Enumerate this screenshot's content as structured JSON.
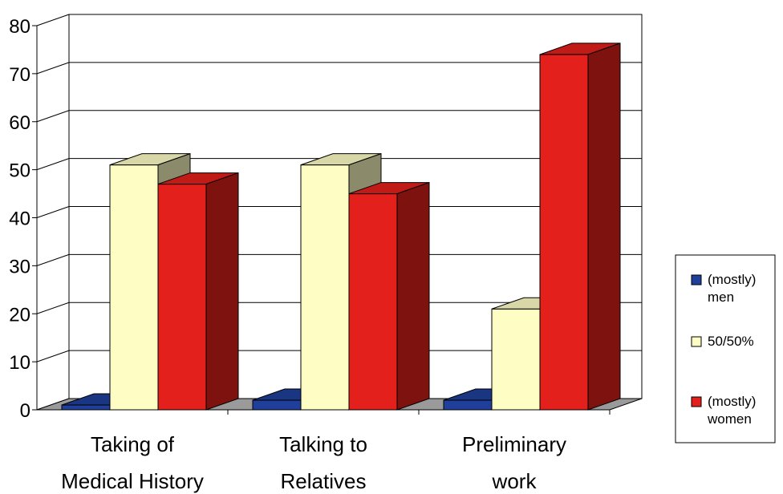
{
  "chart_data": {
    "type": "bar",
    "three_d": true,
    "categories": [
      [
        "Taking of",
        "Medical History"
      ],
      [
        "Talking to",
        "Relatives"
      ],
      [
        "Preliminary",
        "work"
      ]
    ],
    "series": [
      {
        "name": [
          "(mostly)",
          "men"
        ],
        "values": [
          1,
          2,
          2
        ],
        "color": "#1f3f9a"
      },
      {
        "name": [
          "50/50%"
        ],
        "values": [
          51,
          51,
          21
        ],
        "color": "#fdfdc4"
      },
      {
        "name": [
          "(mostly)",
          "women"
        ],
        "values": [
          47,
          45,
          74
        ],
        "color": "#e3201b"
      }
    ],
    "ylim": [
      0,
      80
    ],
    "yticks": [
      0,
      10,
      20,
      30,
      40,
      50,
      60,
      70,
      80
    ],
    "grid": true,
    "legend": "right"
  }
}
